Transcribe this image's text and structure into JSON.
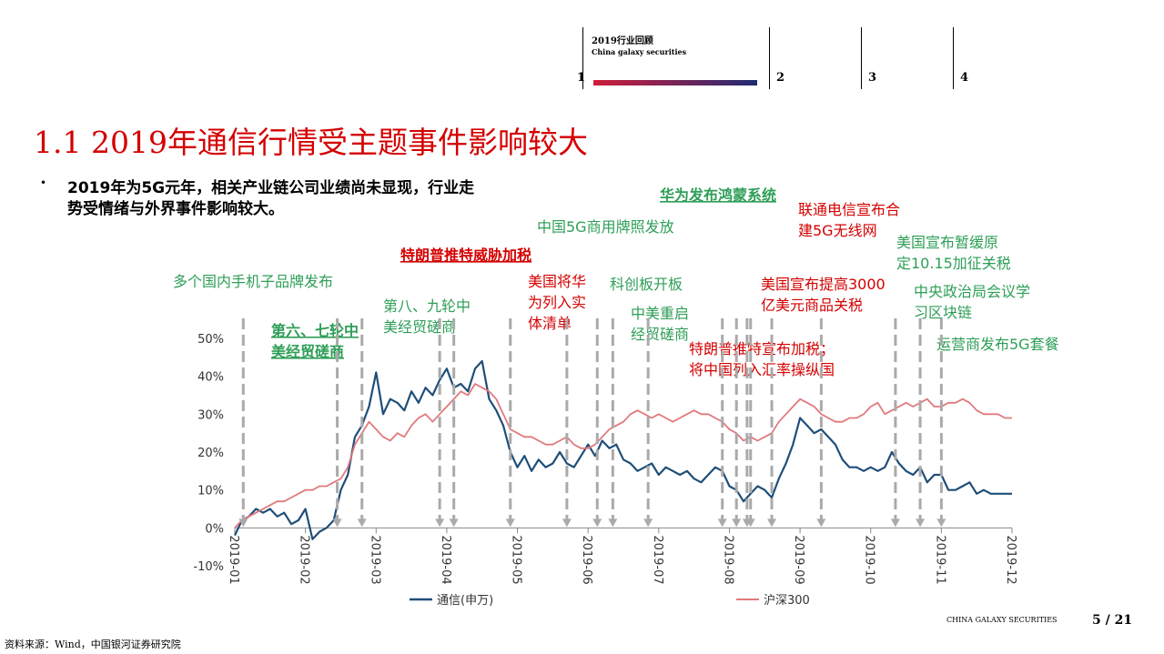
{
  "header": {
    "section_title": "2019行业回顾",
    "section_subtitle": "China galaxy securities",
    "nav_numbers": [
      "1",
      "2",
      "3",
      "4"
    ]
  },
  "slide_title": "1.1 2019年通信行情受主题事件影响较大",
  "bullet": {
    "line1": "2019年为5G元年，相关产业链公司业绩尚未显现，行业走",
    "line2": "势受情绪与外界事件影响较大。"
  },
  "colors": {
    "title_red": "#d40000",
    "annotation_green": "#2e9e57",
    "annotation_red": "#d40000",
    "series_blue": "#1f4e79",
    "series_pink": "#e0797d",
    "arrow_gray": "#aaaaaa"
  },
  "chart_data": {
    "type": "line",
    "y_unit": "%",
    "ylim": [
      -10,
      50
    ],
    "yticks": [
      "50%",
      "40%",
      "30%",
      "20%",
      "10%",
      "0%",
      "-10%"
    ],
    "yticks_values": [
      50,
      40,
      30,
      20,
      10,
      0,
      -10
    ],
    "xticks": [
      "2019-01",
      "2019-02",
      "2019-03",
      "2019-04",
      "2019-05",
      "2019-06",
      "2019-07",
      "2019-08",
      "2019-09",
      "2019-10",
      "2019-11",
      "2019-12"
    ],
    "xlim": [
      0,
      11
    ],
    "grid": false,
    "legend_position": "bottom",
    "series": [
      {
        "name": "通信(申万)",
        "color": "#1f4e79",
        "x": [
          0,
          0.1,
          0.2,
          0.3,
          0.4,
          0.5,
          0.6,
          0.7,
          0.8,
          0.9,
          1.0,
          1.1,
          1.2,
          1.3,
          1.4,
          1.5,
          1.6,
          1.7,
          1.8,
          1.9,
          2.0,
          2.1,
          2.2,
          2.3,
          2.4,
          2.5,
          2.6,
          2.7,
          2.8,
          2.9,
          3.0,
          3.1,
          3.2,
          3.3,
          3.4,
          3.5,
          3.6,
          3.7,
          3.8,
          3.9,
          4.0,
          4.1,
          4.2,
          4.3,
          4.4,
          4.5,
          4.6,
          4.7,
          4.8,
          4.9,
          5.0,
          5.1,
          5.2,
          5.3,
          5.4,
          5.5,
          5.6,
          5.7,
          5.8,
          5.9,
          6.0,
          6.1,
          6.2,
          6.3,
          6.4,
          6.5,
          6.6,
          6.7,
          6.8,
          6.9,
          7.0,
          7.1,
          7.2,
          7.3,
          7.4,
          7.5,
          7.6,
          7.7,
          7.8,
          7.9,
          8.0,
          8.1,
          8.2,
          8.3,
          8.4,
          8.5,
          8.6,
          8.7,
          8.8,
          8.9,
          9.0,
          9.1,
          9.2,
          9.3,
          9.4,
          9.5,
          9.6,
          9.7,
          9.8,
          9.9,
          10.0,
          10.1,
          10.2,
          10.3,
          10.4,
          10.5,
          10.6,
          10.7,
          10.8,
          10.9,
          11.0
        ],
        "values": [
          -2,
          2,
          3,
          5,
          4,
          5,
          3,
          4,
          1,
          2,
          5,
          -3,
          -1,
          0,
          2,
          10,
          14,
          24,
          27,
          32,
          41,
          30,
          34,
          33,
          31,
          36,
          33,
          37,
          35,
          39,
          42,
          37,
          38,
          36,
          42,
          44,
          34,
          31,
          27,
          20,
          16,
          19,
          15,
          18,
          16,
          17,
          20,
          17,
          16,
          19,
          22,
          19,
          23,
          21,
          22,
          18,
          17,
          15,
          16,
          17,
          14,
          16,
          15,
          14,
          15,
          13,
          12,
          14,
          16,
          15,
          11,
          10,
          7,
          9,
          11,
          10,
          8,
          13,
          17,
          22,
          29,
          27,
          25,
          26,
          24,
          22,
          18,
          16,
          16,
          15,
          16,
          15,
          16,
          20,
          17,
          15,
          14,
          16,
          12,
          14,
          14,
          10,
          10,
          11,
          12,
          9,
          10,
          9,
          9,
          9,
          9
        ]
      },
      {
        "name": "沪深300",
        "color": "#e0797d",
        "x": [
          0,
          0.1,
          0.2,
          0.3,
          0.4,
          0.5,
          0.6,
          0.7,
          0.8,
          0.9,
          1.0,
          1.1,
          1.2,
          1.3,
          1.4,
          1.5,
          1.6,
          1.7,
          1.8,
          1.9,
          2.0,
          2.1,
          2.2,
          2.3,
          2.4,
          2.5,
          2.6,
          2.7,
          2.8,
          2.9,
          3.0,
          3.1,
          3.2,
          3.3,
          3.4,
          3.5,
          3.6,
          3.7,
          3.8,
          3.9,
          4.0,
          4.1,
          4.2,
          4.3,
          4.4,
          4.5,
          4.6,
          4.7,
          4.8,
          4.9,
          5.0,
          5.1,
          5.2,
          5.3,
          5.4,
          5.5,
          5.6,
          5.7,
          5.8,
          5.9,
          6.0,
          6.1,
          6.2,
          6.3,
          6.4,
          6.5,
          6.6,
          6.7,
          6.8,
          6.9,
          7.0,
          7.1,
          7.2,
          7.3,
          7.4,
          7.5,
          7.6,
          7.7,
          7.8,
          7.9,
          8.0,
          8.1,
          8.2,
          8.3,
          8.4,
          8.5,
          8.6,
          8.7,
          8.8,
          8.9,
          9.0,
          9.1,
          9.2,
          9.3,
          9.4,
          9.5,
          9.6,
          9.7,
          9.8,
          9.9,
          10.0,
          10.1,
          10.2,
          10.3,
          10.4,
          10.5,
          10.6,
          10.7,
          10.8,
          10.9,
          11.0
        ],
        "values": [
          0,
          2,
          3,
          4,
          5,
          6,
          7,
          7,
          8,
          9,
          10,
          10,
          11,
          11,
          12,
          13,
          16,
          22,
          25,
          28,
          26,
          24,
          23,
          25,
          24,
          27,
          29,
          30,
          28,
          30,
          32,
          34,
          36,
          35,
          38,
          37,
          36,
          34,
          30,
          26,
          25,
          24,
          24,
          23,
          22,
          22,
          23,
          24,
          22,
          21,
          21,
          22,
          24,
          26,
          27,
          28,
          30,
          31,
          30,
          29,
          30,
          29,
          28,
          29,
          30,
          31,
          30,
          30,
          29,
          28,
          26,
          25,
          23,
          24,
          23,
          24,
          25,
          28,
          30,
          32,
          34,
          33,
          32,
          30,
          29,
          28,
          28,
          29,
          29,
          30,
          32,
          33,
          30,
          31,
          32,
          33,
          32,
          33,
          34,
          32,
          32,
          33,
          33,
          34,
          33,
          31,
          30,
          30,
          30,
          29,
          29
        ]
      }
    ],
    "annotations": [
      {
        "text": [
          "多个国内手机子品牌发布"
        ],
        "color": "green",
        "bold": false,
        "x": 0.15
      },
      {
        "text": [
          "第六、七轮中",
          "美经贸磋商"
        ],
        "color": "green",
        "bold": true,
        "x": 1.4
      },
      {
        "text": [
          "第八、九轮中",
          "美经贸磋商"
        ],
        "color": "green",
        "bold": false,
        "x": 2.85
      },
      {
        "text": [
          "特朗普推特威胁加税"
        ],
        "color": "red",
        "bold": true,
        "x": 3.95
      },
      {
        "text": [
          "中国5G商用牌照发放"
        ],
        "color": "green",
        "bold": false,
        "x": 5.15
      },
      {
        "text": [
          "美国将华",
          "为列入实",
          "体清单"
        ],
        "color": "red",
        "bold": false,
        "x": 4.7
      },
      {
        "text": [
          "科创板开板"
        ],
        "color": "green",
        "bold": false,
        "x": 5.35
      },
      {
        "text": [
          "中美重启",
          "经贸磋商"
        ],
        "color": "green",
        "bold": false,
        "x": 5.9
      },
      {
        "text": [
          "华为发布鸿蒙系统"
        ],
        "color": "green",
        "bold": true,
        "x": 7.35
      },
      {
        "text": [
          "特朗普推特宣布加税；",
          "将中国列入汇率操纵国"
        ],
        "color": "red",
        "bold": false,
        "x": 7.25
      },
      {
        "text": [
          "联通电信宣布合",
          "建5G无线网"
        ],
        "color": "red",
        "bold": false,
        "x": 8.3
      },
      {
        "text": [
          "美国宣布提高3000",
          "亿美元商品关税"
        ],
        "color": "red",
        "bold": false,
        "x": 7.7
      },
      {
        "text": [
          "美国宣布暂缓原",
          "定10.15加征关税"
        ],
        "color": "green",
        "bold": false,
        "x": 9.5
      },
      {
        "text": [
          "中央政治局会议学",
          "习区块链"
        ],
        "color": "green",
        "bold": false,
        "x": 9.8
      },
      {
        "text": [
          "运营商发布5G套餐"
        ],
        "color": "green",
        "bold": false,
        "x": 10.0
      }
    ],
    "event_markers_x": [
      0.12,
      1.45,
      1.8,
      2.9,
      3.1,
      3.9,
      4.7,
      5.13,
      5.35,
      5.85,
      6.9,
      7.1,
      7.25,
      7.3,
      7.6,
      8.3,
      9.35,
      9.7,
      10.0
    ]
  },
  "footer": {
    "source": "资料来源：Wind，中国银河证券研究院",
    "logo": "CHINA GALAXY SECURITIES",
    "page": "5 / 21"
  }
}
